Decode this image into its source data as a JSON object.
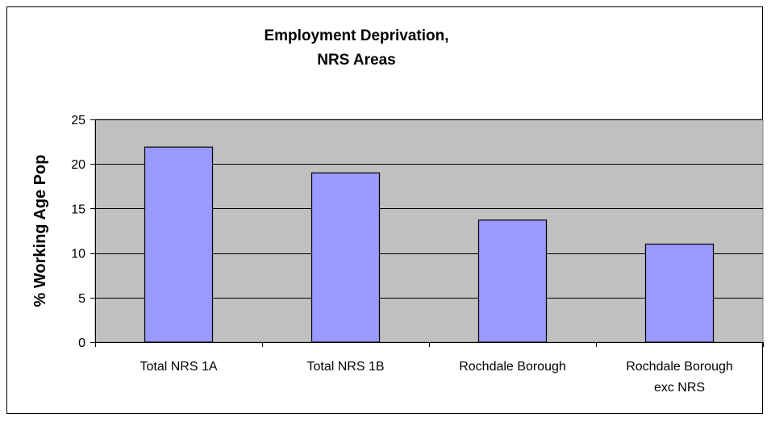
{
  "chart_data": {
    "type": "bar",
    "title": [
      "Employment Deprivation,",
      "NRS Areas"
    ],
    "xlabel": "",
    "ylabel": "% Working Age Pop",
    "categories": [
      [
        "Total NRS 1A"
      ],
      [
        "Total NRS 1B"
      ],
      [
        "Rochdale Borough"
      ],
      [
        "Rochdale Borough",
        "exc NRS"
      ]
    ],
    "values": [
      21.9,
      19.0,
      13.7,
      11.0
    ],
    "ylim": [
      0,
      25
    ],
    "yticks": [
      0,
      5,
      10,
      15,
      20,
      25
    ],
    "grid": true,
    "legend": "none",
    "colors": {
      "bar_fill": "#9999ff",
      "plot_background": "#c0c0c0"
    }
  }
}
